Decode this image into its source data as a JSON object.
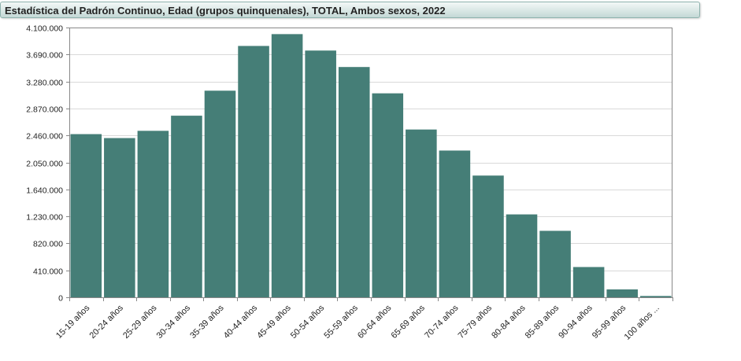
{
  "title": "Estadística del Padrón Continuo, Edad (grupos quinquenales), TOTAL, Ambos sexos, 2022",
  "colors": {
    "bar": "#457e77",
    "grid": "#d9d9d9",
    "axis": "#888888"
  },
  "chart_data": {
    "type": "bar",
    "title": "Estadística del Padrón Continuo, Edad (grupos quinquenales), TOTAL, Ambos sexos, 2022",
    "xlabel": "",
    "ylabel": "",
    "ylim": [
      0,
      4100000
    ],
    "yticks": [
      0,
      410000,
      820000,
      1230000,
      1640000,
      2050000,
      2460000,
      2870000,
      3280000,
      3690000,
      4100000
    ],
    "ytick_labels": [
      "0",
      "410.000",
      "820.000",
      "1.230.000",
      "1.640.000",
      "2.050.000",
      "2.460.000",
      "2.870.000",
      "3.280.000",
      "3.690.000",
      "4.100.000"
    ],
    "grid": true,
    "legend": "none",
    "categories": [
      "15-19 años",
      "20-24 años",
      "25-29 años",
      "30-34 años",
      "35-39 años",
      "40-44 años",
      "45-49 años",
      "50-54 años",
      "55-59 años",
      "60-64 años",
      "65-69 años",
      "70-74 años",
      "75-79 años",
      "80-84 años",
      "85-89 años",
      "90-94 años",
      "95-99 años",
      "100 años ..."
    ],
    "values": [
      2480000,
      2420000,
      2530000,
      2760000,
      3140000,
      3820000,
      4000000,
      3750000,
      3500000,
      3100000,
      2550000,
      2230000,
      1850000,
      1260000,
      1010000,
      460000,
      120000,
      20000
    ]
  }
}
